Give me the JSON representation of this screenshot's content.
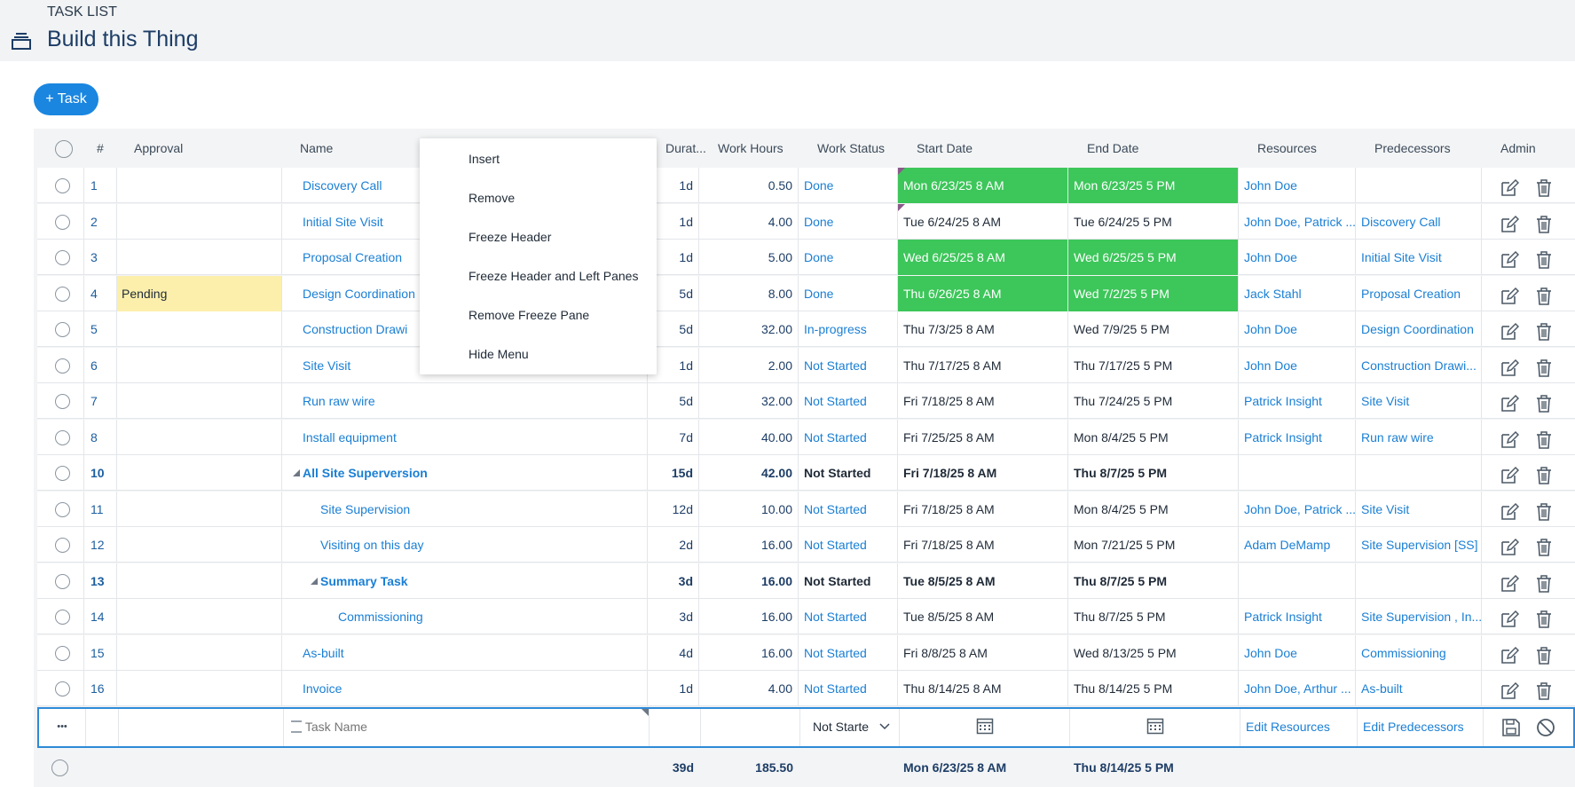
{
  "header": {
    "subtitle": "TASK LIST",
    "title": "Build this Thing"
  },
  "toolbar": {
    "add_task_label": "+ Task"
  },
  "columns": [
    "#",
    "Approval",
    "Name",
    "Durat...",
    "Work Hours",
    "Work Status",
    "Start Date",
    "End Date",
    "Resources",
    "Predecessors",
    "Admin"
  ],
  "rows": [
    {
      "num": "1",
      "approval": "",
      "name": "Discovery Call",
      "indent": 0,
      "summary": false,
      "dur": "1d",
      "hours": "0.50",
      "status": "Done",
      "start": "Mon 6/23/25 8 AM",
      "end": "Mon 6/23/25 5 PM",
      "res": "John Doe",
      "pred": "",
      "hl": "green"
    },
    {
      "num": "2",
      "approval": "",
      "name": "Initial Site Visit",
      "indent": 0,
      "summary": false,
      "dur": "1d",
      "hours": "4.00",
      "status": "Done",
      "start": "Tue 6/24/25 8 AM",
      "end": "Tue 6/24/25 5 PM",
      "res": "John Doe, Patrick ...",
      "pred": "Discovery Call",
      "hl": ""
    },
    {
      "num": "3",
      "approval": "",
      "name": "Proposal Creation",
      "indent": 0,
      "summary": false,
      "dur": "1d",
      "hours": "5.00",
      "status": "Done",
      "start": "Wed 6/25/25 8 AM",
      "end": "Wed 6/25/25 5 PM",
      "res": "John Doe",
      "pred": "Initial Site Visit",
      "hl": "green"
    },
    {
      "num": "4",
      "approval": "Pending",
      "name": "Design Coordination",
      "indent": 0,
      "summary": false,
      "dur": "5d",
      "hours": "8.00",
      "status": "Done",
      "start": "Thu 6/26/25 8 AM",
      "end": "Wed 7/2/25 5 PM",
      "res": "Jack Stahl",
      "pred": "Proposal Creation",
      "hl": "green"
    },
    {
      "num": "5",
      "approval": "",
      "name": "Construction Drawi",
      "indent": 0,
      "summary": false,
      "dur": "5d",
      "hours": "32.00",
      "status": "In-progress",
      "start": "Thu 7/3/25 8 AM",
      "end": "Wed 7/9/25 5 PM",
      "res": "John Doe",
      "pred": "Design Coordination",
      "hl": ""
    },
    {
      "num": "6",
      "approval": "",
      "name": "Site Visit",
      "indent": 0,
      "summary": false,
      "dur": "1d",
      "hours": "2.00",
      "status": "Not Started",
      "start": "Thu 7/17/25 8 AM",
      "end": "Thu 7/17/25 5 PM",
      "res": "John Doe",
      "pred": "Construction Drawi...",
      "hl": ""
    },
    {
      "num": "7",
      "approval": "",
      "name": "Run raw wire",
      "indent": 0,
      "summary": false,
      "dur": "5d",
      "hours": "32.00",
      "status": "Not Started",
      "start": "Fri 7/18/25 8 AM",
      "end": "Thu 7/24/25 5 PM",
      "res": "Patrick Insight",
      "pred": "Site Visit",
      "hl": ""
    },
    {
      "num": "8",
      "approval": "",
      "name": "Install equipment",
      "indent": 0,
      "summary": false,
      "dur": "7d",
      "hours": "40.00",
      "status": "Not Started",
      "start": "Fri 7/25/25 8 AM",
      "end": "Mon 8/4/25 5 PM",
      "res": "Patrick Insight",
      "pred": "Run raw wire",
      "hl": ""
    },
    {
      "num": "10",
      "approval": "",
      "name": "All Site Superversion",
      "indent": 0,
      "summary": true,
      "dur": "15d",
      "hours": "42.00",
      "status": "Not Started",
      "start": "Fri 7/18/25 8 AM",
      "end": "Thu 8/7/25 5 PM",
      "res": "",
      "pred": "",
      "hl": ""
    },
    {
      "num": "11",
      "approval": "",
      "name": "Site Supervision",
      "indent": 1,
      "summary": false,
      "dur": "12d",
      "hours": "10.00",
      "status": "Not Started",
      "start": "Fri 7/18/25 8 AM",
      "end": "Mon 8/4/25 5 PM",
      "res": "John Doe, Patrick ...",
      "pred": "Site Visit",
      "hl": ""
    },
    {
      "num": "12",
      "approval": "",
      "name": "Visiting on this day",
      "indent": 1,
      "summary": false,
      "dur": "2d",
      "hours": "16.00",
      "status": "Not Started",
      "start": "Fri 7/18/25 8 AM",
      "end": "Mon 7/21/25 5 PM",
      "res": "Adam DeMamp",
      "pred": "Site Supervision [SS]",
      "hl": ""
    },
    {
      "num": "13",
      "approval": "",
      "name": "Summary Task",
      "indent": 1,
      "summary": true,
      "dur": "3d",
      "hours": "16.00",
      "status": "Not Started",
      "start": "Tue 8/5/25 8 AM",
      "end": "Thu 8/7/25 5 PM",
      "res": "",
      "pred": "",
      "hl": ""
    },
    {
      "num": "14",
      "approval": "",
      "name": "Commissioning",
      "indent": 2,
      "summary": false,
      "dur": "3d",
      "hours": "16.00",
      "status": "Not Started",
      "start": "Tue 8/5/25 8 AM",
      "end": "Thu 8/7/25 5 PM",
      "res": "Patrick Insight",
      "pred": "Site Supervision , In...",
      "hl": ""
    },
    {
      "num": "15",
      "approval": "",
      "name": "As-built",
      "indent": 0,
      "summary": false,
      "dur": "4d",
      "hours": "16.00",
      "status": "Not Started",
      "start": "Fri 8/8/25 8 AM",
      "end": "Wed 8/13/25 5 PM",
      "res": "John Doe",
      "pred": "Commissioning",
      "hl": ""
    },
    {
      "num": "16",
      "approval": "",
      "name": "Invoice",
      "indent": 0,
      "summary": false,
      "dur": "1d",
      "hours": "4.00",
      "status": "Not Started",
      "start": "Thu 8/14/25 8 AM",
      "end": "Thu 8/14/25 5 PM",
      "res": "John Doe, Arthur ...",
      "pred": "As-built",
      "hl": ""
    }
  ],
  "new_row": {
    "more_label": "•••",
    "name_placeholder": "Task Name",
    "status_value": "Not Starte",
    "edit_resources": "Edit Resources",
    "edit_predecessors": "Edit Predecessors"
  },
  "totals": {
    "dur": "39d",
    "hours": "185.50",
    "start": "Mon 6/23/25 8 AM",
    "end": "Thu 8/14/25 5 PM"
  },
  "context_menu": [
    "Insert",
    "Remove",
    "Freeze Header",
    "Freeze Header and Left Panes",
    "Remove Freeze Pane",
    "Hide Menu"
  ],
  "colors": {
    "accent": "#1a86e0",
    "link": "#1a7fd4",
    "done_highlight": "#3dc65a",
    "pending": "#fcefab"
  }
}
